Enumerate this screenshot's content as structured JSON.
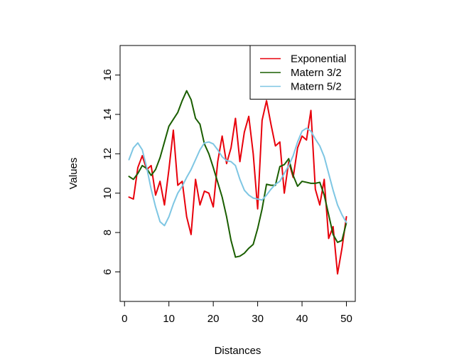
{
  "chart_data": {
    "type": "line",
    "xlabel": "Distances",
    "ylabel": "Values",
    "xlim": [
      -1,
      52
    ],
    "ylim": [
      4.5,
      17.5
    ],
    "xticks": [
      0,
      10,
      20,
      30,
      40,
      50
    ],
    "yticks": [
      6,
      8,
      10,
      12,
      14,
      16
    ],
    "grid": false,
    "legend_position": "top-right",
    "x": [
      1,
      2,
      3,
      4,
      5,
      6,
      7,
      8,
      9,
      10,
      11,
      12,
      13,
      14,
      15,
      16,
      17,
      18,
      19,
      20,
      21,
      22,
      23,
      24,
      25,
      26,
      27,
      28,
      29,
      30,
      31,
      32,
      33,
      34,
      35,
      36,
      37,
      38,
      39,
      40,
      41,
      42,
      43,
      44,
      45,
      46,
      47,
      48,
      49,
      50
    ],
    "series": [
      {
        "name": "Exponential",
        "color": "#e8000b",
        "values": [
          9.8,
          9.7,
          11.3,
          11.9,
          11.2,
          11.4,
          9.9,
          10.6,
          9.4,
          11.2,
          13.2,
          10.4,
          10.6,
          8.8,
          7.9,
          10.7,
          9.4,
          10.1,
          10.0,
          9.3,
          11.6,
          12.9,
          11.5,
          12.3,
          13.8,
          11.6,
          13.1,
          13.9,
          12.0,
          9.2,
          13.7,
          14.7,
          13.5,
          12.4,
          12.6,
          10.0,
          11.6,
          10.8,
          12.3,
          12.9,
          12.7,
          14.2,
          10.2,
          9.4,
          10.7,
          7.7,
          8.3,
          5.9,
          7.2,
          8.8
        ]
      },
      {
        "name": "Matern 3/2",
        "color": "#1a5e00",
        "values": [
          10.85,
          10.7,
          11.0,
          11.4,
          11.25,
          10.9,
          11.2,
          11.8,
          12.6,
          13.4,
          13.75,
          14.1,
          14.7,
          15.2,
          14.75,
          13.8,
          13.5,
          12.5,
          12.0,
          11.3,
          10.55,
          9.8,
          8.8,
          7.6,
          6.75,
          6.8,
          6.95,
          7.2,
          7.4,
          8.2,
          9.2,
          10.45,
          10.4,
          10.4,
          11.35,
          11.45,
          11.75,
          10.9,
          10.35,
          10.6,
          10.55,
          10.5,
          10.5,
          10.55,
          9.9,
          8.9,
          7.9,
          7.5,
          7.6,
          8.5
        ]
      },
      {
        "name": "Matern 5/2",
        "color": "#7ec6e3",
        "values": [
          11.7,
          12.3,
          12.55,
          12.2,
          11.3,
          10.2,
          9.3,
          8.55,
          8.35,
          8.8,
          9.45,
          10.0,
          10.35,
          10.8,
          11.2,
          11.7,
          12.2,
          12.55,
          12.6,
          12.5,
          12.2,
          11.85,
          11.65,
          11.6,
          11.4,
          10.7,
          10.15,
          9.9,
          9.75,
          9.7,
          9.65,
          9.9,
          10.2,
          10.45,
          10.6,
          11.0,
          11.4,
          11.9,
          12.6,
          13.15,
          13.3,
          13.15,
          12.75,
          12.4,
          11.85,
          11.0,
          10.15,
          9.4,
          8.9,
          8.5
        ]
      }
    ]
  }
}
